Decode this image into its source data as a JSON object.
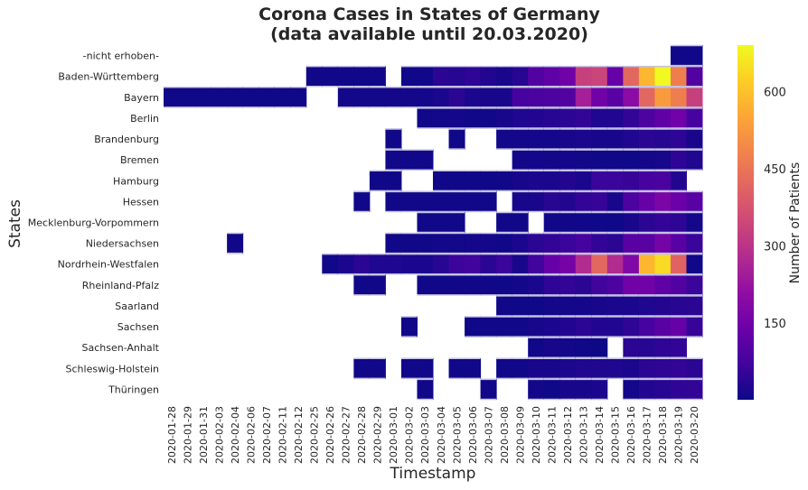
{
  "chart_data": {
    "type": "heatmap",
    "title": "Corona Cases in States of Germany\n(data available until 20.03.2020)",
    "title_lines": [
      "Corona Cases in States of Germany",
      "(data available until 20.03.2020)"
    ],
    "xlabel": "Timestamp",
    "ylabel": "States",
    "colorbar_label": "Number of Patients",
    "colormap": "plasma",
    "color_range": [
      1,
      690
    ],
    "colorbar_ticks": [
      150,
      300,
      450,
      600
    ],
    "x": [
      "2020-01-28",
      "2020-01-29",
      "2020-01-31",
      "2020-02-03",
      "2020-02-04",
      "2020-02-06",
      "2020-02-07",
      "2020-02-11",
      "2020-02-12",
      "2020-02-25",
      "2020-02-26",
      "2020-02-27",
      "2020-02-28",
      "2020-02-29",
      "2020-03-01",
      "2020-03-02",
      "2020-03-03",
      "2020-03-04",
      "2020-03-05",
      "2020-03-06",
      "2020-03-07",
      "2020-03-08",
      "2020-03-09",
      "2020-03-10",
      "2020-03-11",
      "2020-03-12",
      "2020-03-13",
      "2020-03-14",
      "2020-03-15",
      "2020-03-16",
      "2020-03-17",
      "2020-03-18",
      "2020-03-19",
      "2020-03-20"
    ],
    "y": [
      "-nicht erhoben-",
      "Baden-Württemberg",
      "Bayern",
      "Berlin",
      "Brandenburg",
      "Bremen",
      "Hamburg",
      "Hessen",
      "Mecklenburg-Vorpommern",
      "Niedersachsen",
      "Nordrhein-Westfalen",
      "Rheinland-Pfalz",
      "Saarland",
      "Sachsen",
      "Sachsen-Anhalt",
      "Schleswig-Holstein",
      "Thüringen"
    ],
    "values": [
      [
        null,
        null,
        null,
        null,
        null,
        null,
        null,
        null,
        null,
        null,
        null,
        null,
        null,
        null,
        null,
        null,
        null,
        null,
        null,
        null,
        null,
        null,
        null,
        null,
        null,
        null,
        null,
        null,
        null,
        null,
        null,
        null,
        5,
        5
      ],
      [
        null,
        null,
        null,
        null,
        null,
        null,
        null,
        null,
        null,
        5,
        5,
        5,
        5,
        5,
        null,
        5,
        5,
        40,
        35,
        45,
        30,
        15,
        35,
        100,
        120,
        150,
        330,
        340,
        130,
        420,
        580,
        690,
        470,
        100
      ],
      [
        5,
        5,
        5,
        5,
        5,
        5,
        5,
        5,
        5,
        null,
        null,
        8,
        8,
        8,
        10,
        10,
        12,
        20,
        40,
        20,
        15,
        15,
        80,
        85,
        90,
        100,
        250,
        150,
        110,
        200,
        420,
        530,
        470,
        330
      ],
      [
        null,
        null,
        null,
        null,
        null,
        null,
        null,
        null,
        null,
        null,
        null,
        null,
        null,
        null,
        null,
        null,
        5,
        8,
        12,
        5,
        5,
        15,
        25,
        30,
        35,
        40,
        50,
        25,
        25,
        50,
        90,
        120,
        150,
        80
      ],
      [
        null,
        null,
        null,
        null,
        null,
        null,
        null,
        null,
        null,
        null,
        null,
        null,
        null,
        null,
        5,
        null,
        null,
        null,
        5,
        null,
        null,
        8,
        10,
        12,
        12,
        15,
        20,
        15,
        15,
        25,
        40,
        35,
        45,
        15
      ],
      [
        null,
        null,
        null,
        null,
        null,
        null,
        null,
        null,
        null,
        null,
        null,
        null,
        null,
        null,
        5,
        5,
        5,
        null,
        null,
        null,
        null,
        null,
        10,
        12,
        10,
        12,
        8,
        5,
        5,
        3,
        10,
        15,
        45,
        25
      ],
      [
        null,
        null,
        null,
        null,
        null,
        null,
        null,
        null,
        null,
        null,
        null,
        null,
        null,
        5,
        5,
        null,
        null,
        5,
        5,
        5,
        5,
        5,
        15,
        20,
        20,
        30,
        20,
        60,
        60,
        55,
        80,
        85,
        30,
        null
      ],
      [
        null,
        null,
        null,
        null,
        null,
        null,
        null,
        null,
        null,
        null,
        null,
        null,
        5,
        null,
        5,
        5,
        5,
        5,
        5,
        5,
        5,
        null,
        15,
        15,
        35,
        30,
        50,
        55,
        15,
        90,
        130,
        170,
        140,
        110
      ],
      [
        null,
        null,
        null,
        null,
        null,
        null,
        null,
        null,
        null,
        null,
        null,
        null,
        null,
        null,
        null,
        null,
        5,
        5,
        5,
        null,
        null,
        5,
        5,
        null,
        5,
        5,
        5,
        3,
        3,
        15,
        40,
        50,
        45,
        10
      ],
      [
        null,
        null,
        null,
        null,
        5,
        null,
        null,
        null,
        null,
        null,
        null,
        null,
        null,
        null,
        5,
        5,
        5,
        8,
        8,
        10,
        10,
        5,
        20,
        40,
        50,
        60,
        80,
        50,
        40,
        110,
        110,
        160,
        110,
        60
      ],
      [
        null,
        null,
        null,
        null,
        null,
        null,
        null,
        null,
        null,
        null,
        5,
        20,
        40,
        25,
        25,
        20,
        20,
        35,
        65,
        70,
        40,
        60,
        15,
        70,
        130,
        160,
        280,
        420,
        280,
        180,
        580,
        640,
        410,
        5
      ],
      [
        null,
        null,
        null,
        null,
        null,
        null,
        null,
        null,
        null,
        null,
        null,
        null,
        5,
        5,
        null,
        null,
        5,
        5,
        5,
        5,
        5,
        5,
        10,
        20,
        45,
        50,
        40,
        70,
        90,
        150,
        150,
        120,
        100,
        60
      ],
      [
        null,
        null,
        null,
        null,
        null,
        null,
        null,
        null,
        null,
        null,
        null,
        null,
        null,
        null,
        null,
        null,
        null,
        null,
        null,
        null,
        null,
        5,
        5,
        3,
        10,
        8,
        12,
        15,
        20,
        20,
        25,
        30,
        35,
        40
      ],
      [
        null,
        null,
        null,
        null,
        null,
        null,
        null,
        null,
        null,
        null,
        null,
        null,
        null,
        null,
        null,
        5,
        null,
        null,
        null,
        5,
        5,
        5,
        5,
        15,
        20,
        30,
        40,
        30,
        25,
        45,
        80,
        110,
        130,
        55
      ],
      [
        null,
        null,
        null,
        null,
        null,
        null,
        null,
        null,
        null,
        null,
        null,
        null,
        null,
        null,
        null,
        null,
        null,
        null,
        null,
        null,
        null,
        null,
        null,
        5,
        15,
        10,
        5,
        2,
        null,
        40,
        35,
        45,
        50,
        null
      ],
      [
        null,
        null,
        null,
        null,
        null,
        null,
        null,
        null,
        null,
        null,
        null,
        null,
        5,
        5,
        null,
        5,
        5,
        null,
        5,
        5,
        null,
        5,
        5,
        15,
        15,
        20,
        25,
        25,
        25,
        20,
        40,
        45,
        50,
        40
      ],
      [
        null,
        null,
        null,
        null,
        null,
        null,
        null,
        null,
        null,
        null,
        null,
        null,
        null,
        null,
        null,
        null,
        5,
        null,
        null,
        null,
        5,
        null,
        null,
        10,
        3,
        15,
        15,
        20,
        null,
        10,
        30,
        35,
        45,
        50
      ]
    ]
  }
}
